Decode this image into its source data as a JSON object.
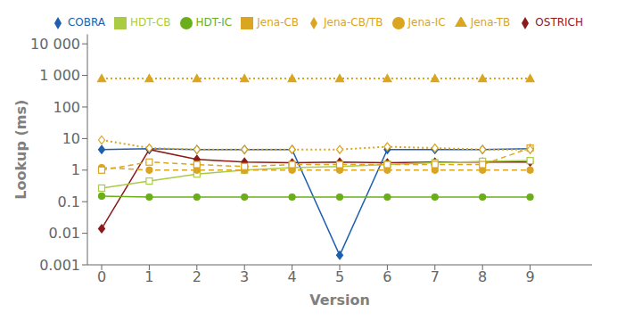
{
  "chart_data": {
    "type": "line",
    "xlabel": "Version",
    "ylabel": "Lookup (ms)",
    "x": [
      0,
      1,
      2,
      3,
      4,
      5,
      6,
      7,
      8,
      9
    ],
    "series": [
      {
        "name": "OSTRICH",
        "color": "#8B1A1A",
        "marker": "diamond",
        "line_style": "solid",
        "values": [
          0.014,
          4.5,
          2.2,
          1.8,
          1.7,
          1.8,
          1.7,
          1.8,
          1.8,
          1.8
        ]
      },
      {
        "name": "COBRA",
        "color": "#1E5EAF",
        "marker": "diamond",
        "line_style": "solid",
        "values": [
          4.5,
          4.8,
          4.5,
          4.5,
          4.5,
          0.002,
          4.5,
          4.5,
          4.5,
          4.8
        ]
      },
      {
        "name": "HDT-IC",
        "color": "#6AAF1A",
        "marker": "circle",
        "line_style": "solid",
        "values": [
          0.15,
          0.14,
          0.14,
          0.14,
          0.14,
          0.14,
          0.14,
          0.14,
          0.14,
          0.14
        ]
      },
      {
        "name": "HDT-CB",
        "color": "#AACC44",
        "marker": "square-open",
        "line_style": "solid",
        "values": [
          0.27,
          0.45,
          0.75,
          1.0,
          1.2,
          1.3,
          1.5,
          1.7,
          1.9,
          2.0
        ]
      },
      {
        "name": "Jena-IC",
        "color": "#DAA520",
        "marker": "circle",
        "line_style": "dashed",
        "values": [
          1.2,
          1.0,
          1.0,
          1.0,
          1.0,
          1.0,
          1.0,
          1.0,
          1.0,
          1.0
        ]
      },
      {
        "name": "Jena-CB",
        "color": "#DAA520",
        "marker": "square-open",
        "line_style": "dashed",
        "values": [
          1.0,
          1.8,
          1.5,
          1.3,
          1.5,
          1.5,
          1.5,
          1.5,
          1.5,
          5.0
        ]
      },
      {
        "name": "Jena-TB",
        "color": "#DAA520",
        "marker": "triangle",
        "line_style": "dotted",
        "values": [
          800,
          800,
          800,
          800,
          800,
          800,
          800,
          800,
          800,
          800
        ]
      },
      {
        "name": "Jena-CB/TB",
        "color": "#DAA520",
        "marker": "diamond-open",
        "line_style": "dotted",
        "values": [
          9.0,
          5.0,
          4.5,
          4.5,
          4.5,
          4.5,
          5.5,
          5.0,
          4.5,
          4.5
        ]
      }
    ],
    "xlim": [
      -0.3,
      10.3
    ],
    "xticks": [
      0,
      1,
      2,
      3,
      4,
      5,
      6,
      7,
      8,
      9
    ],
    "ylim": [
      0.001,
      20000
    ],
    "yticks": [
      0.001,
      0.01,
      0.1,
      1,
      10,
      100,
      {
        "value": 1000,
        "label": "1 000"
      },
      {
        "value": 10000,
        "label": "10 000"
      }
    ],
    "log": "y",
    "grid": false,
    "legend": "upper right"
  }
}
